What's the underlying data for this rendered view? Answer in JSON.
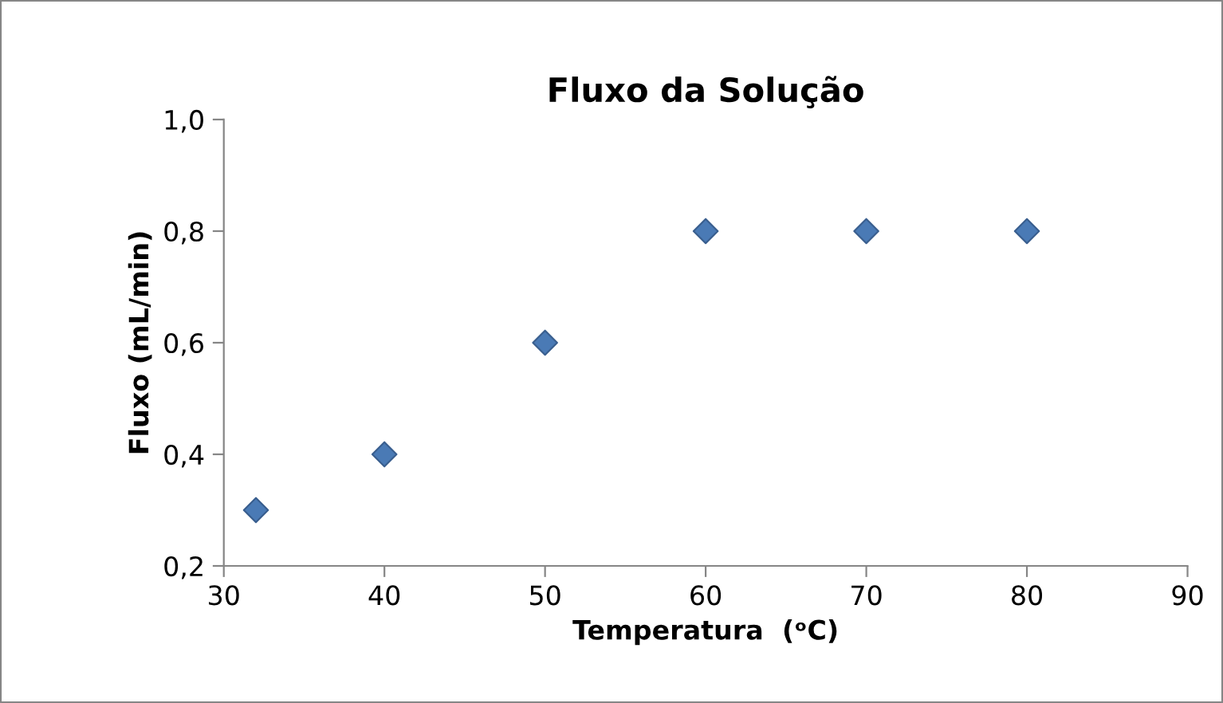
{
  "chart_data": {
    "type": "scatter",
    "title": "Fluxo da Solução",
    "xlabel": "Temperatura  (ᵒC)",
    "ylabel": "Fluxo (mL/min)",
    "x": [
      32,
      40,
      50,
      60,
      70,
      80
    ],
    "series": [
      {
        "color": "#4a7ab5",
        "values": [
          0.3,
          0.4,
          0.6,
          0.8,
          0.8,
          0.8
        ]
      }
    ],
    "xlim": [
      30,
      90
    ],
    "xticks": [
      30,
      40,
      50,
      60,
      70,
      80,
      90
    ],
    "ylim": [
      0.2,
      1.0
    ],
    "yticks": [
      {
        "value": 0.2,
        "label": "0,2"
      },
      {
        "value": 0.4,
        "label": "0,4"
      },
      {
        "value": 0.6,
        "label": "0,6"
      },
      {
        "value": 0.8,
        "label": "0,8"
      },
      {
        "value": 1.0,
        "label": "1,0"
      }
    ],
    "marker": "diamond",
    "grid": false,
    "legend": false
  }
}
